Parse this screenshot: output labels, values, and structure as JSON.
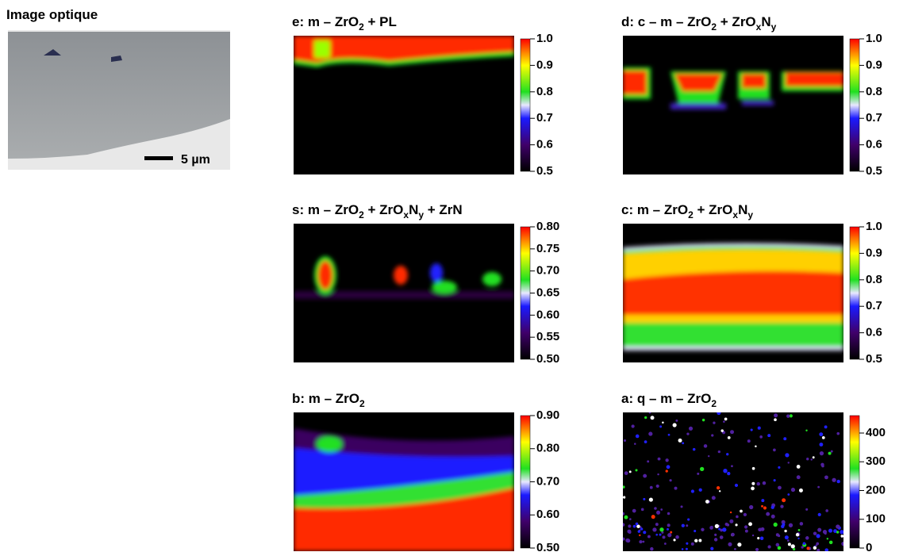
{
  "optical": {
    "title": "Image optique",
    "scale_label": "5 µm"
  },
  "panels": [
    {
      "title": [
        {
          "text": "e:  m – ZrO"
        },
        {
          "text": "2",
          "sub": true
        },
        {
          "text": "  +  PL"
        }
      ],
      "ticks": [
        "1.0",
        "0.9",
        "0.8",
        "0.7",
        "0.6",
        "0.5"
      ]
    },
    {
      "title": [
        {
          "text": "d:  c  – m – ZrO"
        },
        {
          "text": "2",
          "sub": true
        },
        {
          "text": "  +  ZrO"
        },
        {
          "text": "x",
          "sub": true
        },
        {
          "text": "N"
        },
        {
          "text": "y",
          "sub": true
        }
      ],
      "ticks": [
        "1.0",
        "0.9",
        "0.8",
        "0.7",
        "0.6",
        "0.5"
      ]
    },
    {
      "title": [
        {
          "text": "s:  m – ZrO"
        },
        {
          "text": "2",
          "sub": true
        },
        {
          "text": "  +  ZrO"
        },
        {
          "text": "x",
          "sub": true
        },
        {
          "text": "N"
        },
        {
          "text": "y",
          "sub": true
        },
        {
          "text": "  +  ZrN"
        }
      ],
      "ticks": [
        "0.80",
        "0.75",
        "0.70",
        "0.65",
        "0.60",
        "0.55",
        "0.50"
      ]
    },
    {
      "title": [
        {
          "text": "c:  m – ZrO"
        },
        {
          "text": "2",
          "sub": true
        },
        {
          "text": "  +  ZrO"
        },
        {
          "text": "x",
          "sub": true
        },
        {
          "text": "N"
        },
        {
          "text": "y",
          "sub": true
        }
      ],
      "ticks": [
        "1.0",
        "0.9",
        "0.8",
        "0.7",
        "0.6",
        "0.5"
      ]
    },
    {
      "title": [
        {
          "text": "b:  m – ZrO"
        },
        {
          "text": "2",
          "sub": true
        }
      ],
      "ticks": [
        "0.90",
        "0.80",
        "0.70",
        "0.60",
        "0.50"
      ]
    },
    {
      "title": [
        {
          "text": "a:  q – m – ZrO"
        },
        {
          "text": "2",
          "sub": true
        }
      ],
      "ticks": [
        "400",
        "300",
        "200",
        "100",
        "0"
      ]
    }
  ]
}
